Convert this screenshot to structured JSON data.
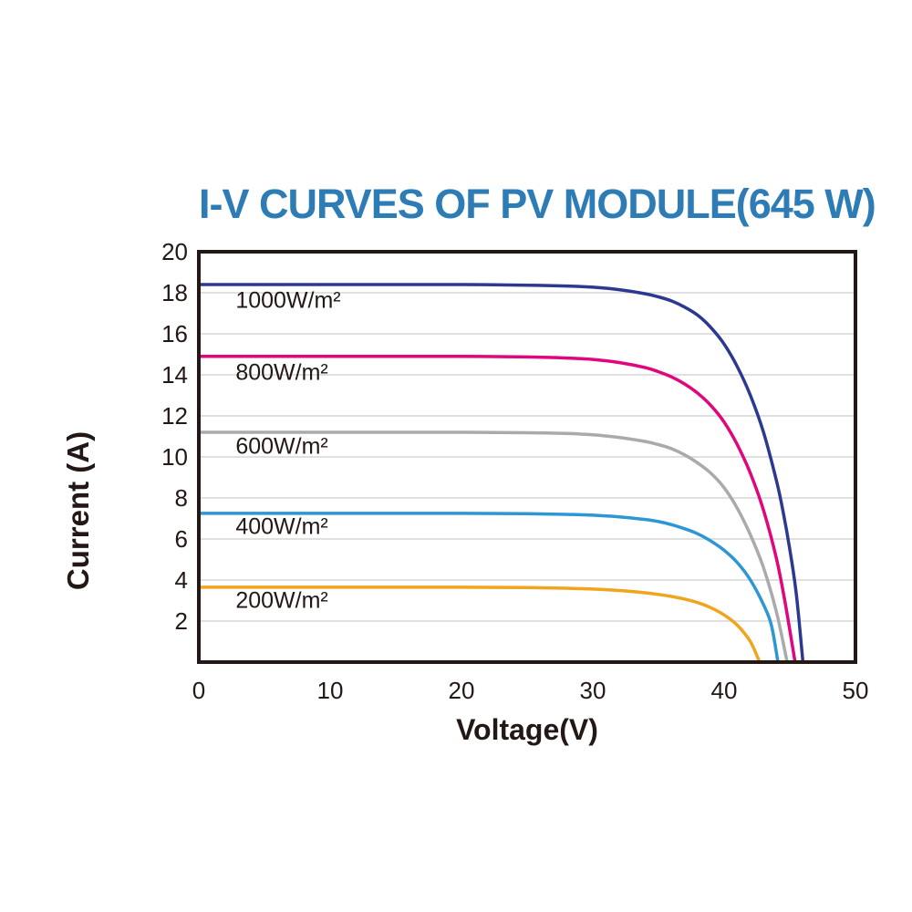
{
  "page": {
    "background": "#ffffff"
  },
  "chart_data": {
    "type": "line",
    "title": "I-V CURVES OF PV MODULE(645 W)",
    "title_color": "#2d7cb5",
    "xlabel": "Voltage(V)",
    "ylabel": "Current (A)",
    "xlim": [
      0,
      50
    ],
    "ylim": [
      0,
      20
    ],
    "x_ticks": [
      0,
      10,
      20,
      30,
      40,
      50
    ],
    "y_ticks": [
      2,
      4,
      6,
      8,
      10,
      12,
      14,
      16,
      18,
      20
    ],
    "grid": "horizontal",
    "legend_position": "inline-labels",
    "frame_color": "#231815",
    "grid_color": "#d6d6d6",
    "text_color": "#231815",
    "series": [
      {
        "name": "1000W/m²",
        "color": "#2b3990",
        "isc": 18.4,
        "voc": 46.0,
        "label_pos": [
          2.8,
          17.6
        ],
        "points": [
          [
            0,
            18.4
          ],
          [
            5,
            18.4
          ],
          [
            10,
            18.4
          ],
          [
            15,
            18.4
          ],
          [
            20,
            18.4
          ],
          [
            25,
            18.37
          ],
          [
            28,
            18.33
          ],
          [
            30,
            18.27
          ],
          [
            32,
            18.15
          ],
          [
            34,
            17.95
          ],
          [
            35,
            17.8
          ],
          [
            36,
            17.6
          ],
          [
            37,
            17.3
          ],
          [
            38,
            16.9
          ],
          [
            39,
            16.3
          ],
          [
            40,
            15.5
          ],
          [
            41,
            14.4
          ],
          [
            42,
            13.0
          ],
          [
            43,
            11.2
          ],
          [
            44,
            8.8
          ],
          [
            44.5,
            7.3
          ],
          [
            45,
            5.5
          ],
          [
            45.5,
            3.3
          ],
          [
            46,
            0
          ]
        ]
      },
      {
        "name": "800W/m²",
        "color": "#e0067c",
        "isc": 14.9,
        "voc": 45.4,
        "label_pos": [
          2.8,
          14.1
        ],
        "points": [
          [
            0,
            14.9
          ],
          [
            5,
            14.9
          ],
          [
            10,
            14.9
          ],
          [
            15,
            14.9
          ],
          [
            20,
            14.9
          ],
          [
            25,
            14.87
          ],
          [
            28,
            14.82
          ],
          [
            30,
            14.75
          ],
          [
            32,
            14.6
          ],
          [
            34,
            14.35
          ],
          [
            35,
            14.15
          ],
          [
            36,
            13.9
          ],
          [
            37,
            13.55
          ],
          [
            38,
            13.1
          ],
          [
            39,
            12.5
          ],
          [
            40,
            11.7
          ],
          [
            41,
            10.6
          ],
          [
            42,
            9.2
          ],
          [
            43,
            7.4
          ],
          [
            44,
            5.0
          ],
          [
            44.7,
            2.7
          ],
          [
            45.4,
            0
          ]
        ]
      },
      {
        "name": "600W/m²",
        "color": "#a9aaad",
        "isc": 11.2,
        "voc": 44.8,
        "label_pos": [
          2.8,
          10.5
        ],
        "points": [
          [
            0,
            11.2
          ],
          [
            5,
            11.2
          ],
          [
            10,
            11.2
          ],
          [
            15,
            11.2
          ],
          [
            20,
            11.2
          ],
          [
            25,
            11.18
          ],
          [
            28,
            11.14
          ],
          [
            30,
            11.08
          ],
          [
            32,
            10.95
          ],
          [
            34,
            10.75
          ],
          [
            35,
            10.6
          ],
          [
            36,
            10.4
          ],
          [
            37,
            10.1
          ],
          [
            38,
            9.7
          ],
          [
            39,
            9.2
          ],
          [
            40,
            8.5
          ],
          [
            41,
            7.5
          ],
          [
            42,
            6.2
          ],
          [
            43,
            4.6
          ],
          [
            44,
            2.4
          ],
          [
            44.8,
            0
          ]
        ]
      },
      {
        "name": "400W/m²",
        "color": "#2d96d5",
        "isc": 7.25,
        "voc": 44.1,
        "label_pos": [
          2.8,
          6.6
        ],
        "points": [
          [
            0,
            7.25
          ],
          [
            5,
            7.25
          ],
          [
            10,
            7.25
          ],
          [
            15,
            7.25
          ],
          [
            20,
            7.25
          ],
          [
            25,
            7.23
          ],
          [
            28,
            7.2
          ],
          [
            30,
            7.16
          ],
          [
            32,
            7.08
          ],
          [
            34,
            6.95
          ],
          [
            35,
            6.85
          ],
          [
            36,
            6.7
          ],
          [
            37,
            6.5
          ],
          [
            38,
            6.25
          ],
          [
            39,
            5.9
          ],
          [
            40,
            5.45
          ],
          [
            41,
            4.85
          ],
          [
            42,
            4.0
          ],
          [
            43,
            2.8
          ],
          [
            43.6,
            1.8
          ],
          [
            44.1,
            0
          ]
        ]
      },
      {
        "name": "200W/m²",
        "color": "#f0a51d",
        "isc": 3.65,
        "voc": 42.7,
        "label_pos": [
          2.8,
          3.0
        ],
        "points": [
          [
            0,
            3.65
          ],
          [
            5,
            3.65
          ],
          [
            10,
            3.65
          ],
          [
            15,
            3.65
          ],
          [
            20,
            3.65
          ],
          [
            25,
            3.63
          ],
          [
            28,
            3.6
          ],
          [
            30,
            3.56
          ],
          [
            31,
            3.53
          ],
          [
            32,
            3.49
          ],
          [
            33,
            3.44
          ],
          [
            34,
            3.38
          ],
          [
            35,
            3.3
          ],
          [
            36,
            3.2
          ],
          [
            37,
            3.07
          ],
          [
            38,
            2.9
          ],
          [
            39,
            2.65
          ],
          [
            40,
            2.3
          ],
          [
            41,
            1.8
          ],
          [
            42,
            1.0
          ],
          [
            42.7,
            0
          ]
        ]
      }
    ]
  }
}
